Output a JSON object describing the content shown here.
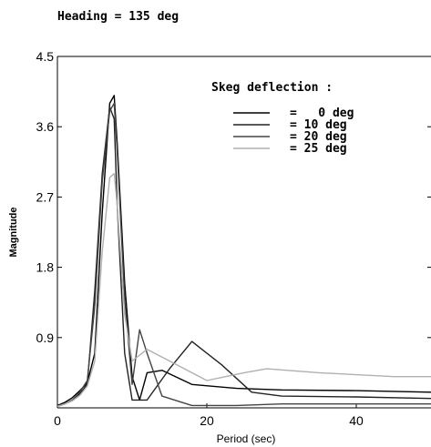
{
  "chart_data": {
    "type": "line",
    "title": "Heading = 135 deg",
    "xlabel": "Period (sec)",
    "ylabel": "Magnitude",
    "xlim": [
      0,
      50
    ],
    "ylim": [
      0,
      4.5
    ],
    "xticks": [
      0,
      20,
      40
    ],
    "yticks": [
      0.9,
      1.8,
      2.7,
      3.6,
      4.5
    ],
    "ytick_labels": [
      "0.9",
      "1.8",
      "2.7",
      "3.6",
      "4.5"
    ],
    "xtick_labels": [
      "0",
      "20",
      "40"
    ],
    "grid": false,
    "legend_title": "Skeg deflection :",
    "legend_position": "top-right",
    "series": [
      {
        "name": "=   0 deg",
        "color": "#000000",
        "x": [
          0,
          1,
          2,
          3,
          4,
          5,
          6,
          7,
          7.6,
          8,
          9,
          10,
          11,
          12,
          14,
          18,
          24,
          30,
          40,
          50
        ],
        "y": [
          0.03,
          0.07,
          0.13,
          0.22,
          0.32,
          0.7,
          2.5,
          3.9,
          4.0,
          3.4,
          1.6,
          0.4,
          0.1,
          0.45,
          0.48,
          0.3,
          0.25,
          0.23,
          0.22,
          0.2
        ]
      },
      {
        "name": "= 10 deg",
        "color": "#222222",
        "x": [
          0,
          1,
          2,
          3,
          4,
          5,
          6,
          7,
          7.6,
          8,
          9,
          10,
          12,
          15,
          18,
          22,
          26,
          30,
          40,
          50
        ],
        "y": [
          0.02,
          0.05,
          0.1,
          0.18,
          0.3,
          1.5,
          3.0,
          3.85,
          3.7,
          2.6,
          0.7,
          0.1,
          0.1,
          0.5,
          0.85,
          0.55,
          0.2,
          0.15,
          0.14,
          0.12
        ]
      },
      {
        "name": "= 20 deg",
        "color": "#444444",
        "x": [
          0,
          1,
          2,
          3,
          4,
          5,
          6,
          7,
          7.6,
          8,
          9,
          10,
          11,
          12,
          14,
          18,
          24,
          30,
          40,
          50
        ],
        "y": [
          0.02,
          0.05,
          0.1,
          0.2,
          0.35,
          1.3,
          2.9,
          3.8,
          3.9,
          3.3,
          1.4,
          0.3,
          1.0,
          0.7,
          0.15,
          0.03,
          0.03,
          0.05,
          0.05,
          0.05
        ]
      },
      {
        "name": "= 25 deg",
        "color": "#b0b0b0",
        "x": [
          0,
          1,
          2,
          3,
          4,
          5,
          6,
          7,
          7.6,
          8,
          9,
          10,
          12,
          15,
          20,
          25,
          28,
          35,
          45,
          50
        ],
        "y": [
          0.02,
          0.05,
          0.09,
          0.16,
          0.28,
          0.6,
          2.0,
          2.95,
          3.0,
          2.6,
          1.2,
          0.6,
          0.75,
          0.6,
          0.35,
          0.45,
          0.5,
          0.45,
          0.4,
          0.4
        ]
      }
    ]
  }
}
